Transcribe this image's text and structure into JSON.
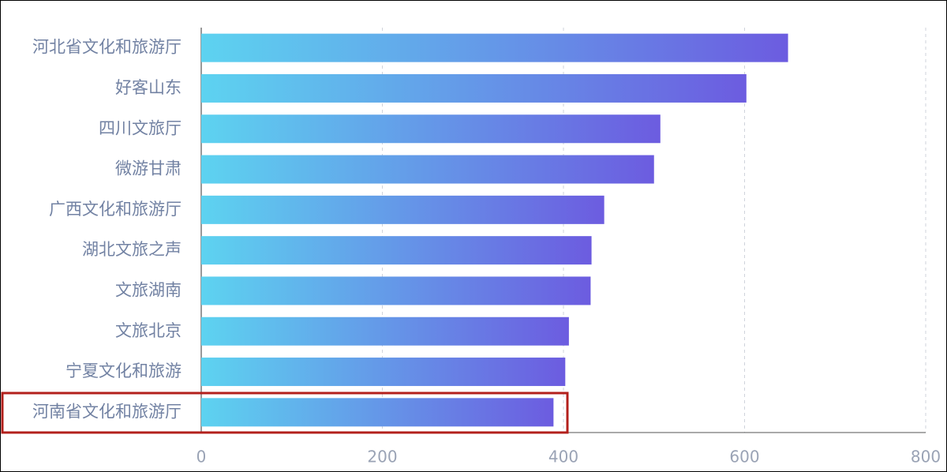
{
  "chart_data": {
    "type": "bar",
    "orientation": "horizontal",
    "categories": [
      "河北省文化和旅游厅",
      "好客山东",
      "四川文旅厅",
      "微游甘肃",
      "广西文化和旅游厅",
      "湖北文旅之声",
      "文旅湖南",
      "文旅北京",
      "宁夏文化和旅游",
      "河南省文化和旅游厅"
    ],
    "values": [
      648,
      602,
      507,
      500,
      445,
      431,
      430,
      406,
      402,
      389
    ],
    "colors": [
      "#5dd3f0",
      "#6c5ce0"
    ],
    "xlim": [
      0,
      800
    ],
    "xticks": [
      0,
      200,
      400,
      600,
      800
    ],
    "grid": true
  }
}
